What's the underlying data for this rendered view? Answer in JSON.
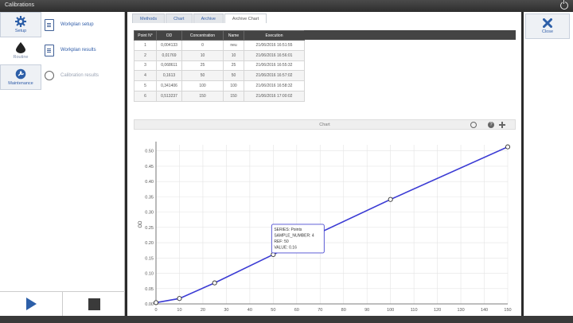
{
  "window": {
    "title": "Calibrations"
  },
  "nav": [
    {
      "key": "setup",
      "label": "Setup",
      "icon": "gear-icon"
    },
    {
      "key": "routine",
      "label": "Routine",
      "icon": "drop-icon"
    },
    {
      "key": "maintenance",
      "label": "Maintenance",
      "icon": "wrench-icon"
    }
  ],
  "subnav": [
    {
      "label": "Workplan setup"
    },
    {
      "label": "Workplan results"
    },
    {
      "label": "Calibration results"
    }
  ],
  "tabs": [
    {
      "label": "Methods"
    },
    {
      "label": "Chart"
    },
    {
      "label": "Archive"
    },
    {
      "label": "Archive Chart",
      "active": true
    }
  ],
  "table": {
    "columns": [
      "Point N°",
      "OD",
      "Concentration",
      "Name",
      "Execution"
    ],
    "rows": [
      [
        "1",
        "0,004133",
        "0",
        "neu",
        "21/06/2016 16:51:55"
      ],
      [
        "2",
        "0,01769",
        "10",
        "10",
        "21/06/2016 16:56:01"
      ],
      [
        "3",
        "0,068611",
        "25",
        "25",
        "21/06/2016 16:55:32"
      ],
      [
        "4",
        "0,1613",
        "50",
        "50",
        "21/06/2016 16:57:02"
      ],
      [
        "5",
        "0,341406",
        "100",
        "100",
        "21/06/2016 16:58:32"
      ],
      [
        "6",
        "0,513237",
        "150",
        "150",
        "21/06/2016 17:00:02"
      ]
    ]
  },
  "chart_header": {
    "title": "Chart"
  },
  "chart_data": {
    "type": "line",
    "ylabel": "OD",
    "xlim": [
      0,
      150
    ],
    "ylim": [
      0,
      0.52
    ],
    "xticks": [
      "0",
      "10",
      "20",
      "30",
      "40",
      "50",
      "60",
      "70",
      "80",
      "90",
      "100",
      "110",
      "120",
      "130",
      "140",
      "150"
    ],
    "yticks": [
      "0.00",
      "0.05",
      "0.10",
      "0.15",
      "0.20",
      "0.25",
      "0.30",
      "0.35",
      "0.40",
      "0.45",
      "0.50"
    ],
    "x": [
      0,
      10,
      25,
      50,
      100,
      150
    ],
    "y": [
      0.004133,
      0.01769,
      0.068611,
      0.1613,
      0.341406,
      0.513237
    ],
    "line_color": "#3b3bd4",
    "tooltip": [
      "SERIES: Points",
      "SAMPLE_NUMBER: 4",
      "REF: 50",
      "VALUE: 0.16"
    ]
  },
  "close_label": "Close"
}
